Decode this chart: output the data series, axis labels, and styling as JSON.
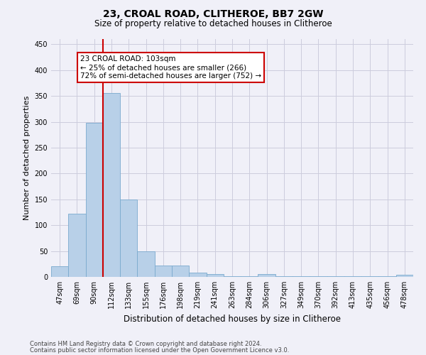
{
  "title": "23, CROAL ROAD, CLITHEROE, BB7 2GW",
  "subtitle": "Size of property relative to detached houses in Clitheroe",
  "xlabel": "Distribution of detached houses by size in Clitheroe",
  "ylabel": "Number of detached properties",
  "footer1": "Contains HM Land Registry data © Crown copyright and database right 2024.",
  "footer2": "Contains public sector information licensed under the Open Government Licence v3.0.",
  "categories": [
    "47sqm",
    "69sqm",
    "90sqm",
    "112sqm",
    "133sqm",
    "155sqm",
    "176sqm",
    "198sqm",
    "219sqm",
    "241sqm",
    "263sqm",
    "284sqm",
    "306sqm",
    "327sqm",
    "349sqm",
    "370sqm",
    "392sqm",
    "413sqm",
    "435sqm",
    "456sqm",
    "478sqm"
  ],
  "values": [
    20,
    122,
    298,
    355,
    150,
    49,
    22,
    22,
    8,
    6,
    2,
    2,
    5,
    2,
    1,
    1,
    2,
    1,
    2,
    1,
    4
  ],
  "bar_color": "#b8d0e8",
  "bar_edge_color": "#7aaace",
  "vline_color": "#cc0000",
  "vline_xindex": 2.5,
  "annotation_text": "23 CROAL ROAD: 103sqm\n← 25% of detached houses are smaller (266)\n72% of semi-detached houses are larger (752) →",
  "annotation_box_color": "white",
  "annotation_box_edge": "#cc0000",
  "ylim": [
    0,
    460
  ],
  "yticks": [
    0,
    50,
    100,
    150,
    200,
    250,
    300,
    350,
    400,
    450
  ],
  "background_color": "#f0f0f8",
  "grid_color": "#ccccdd",
  "title_fontsize": 10,
  "subtitle_fontsize": 8.5,
  "ylabel_fontsize": 8,
  "xlabel_fontsize": 8.5,
  "tick_fontsize": 7,
  "annotation_fontsize": 7.5,
  "footer_fontsize": 6
}
